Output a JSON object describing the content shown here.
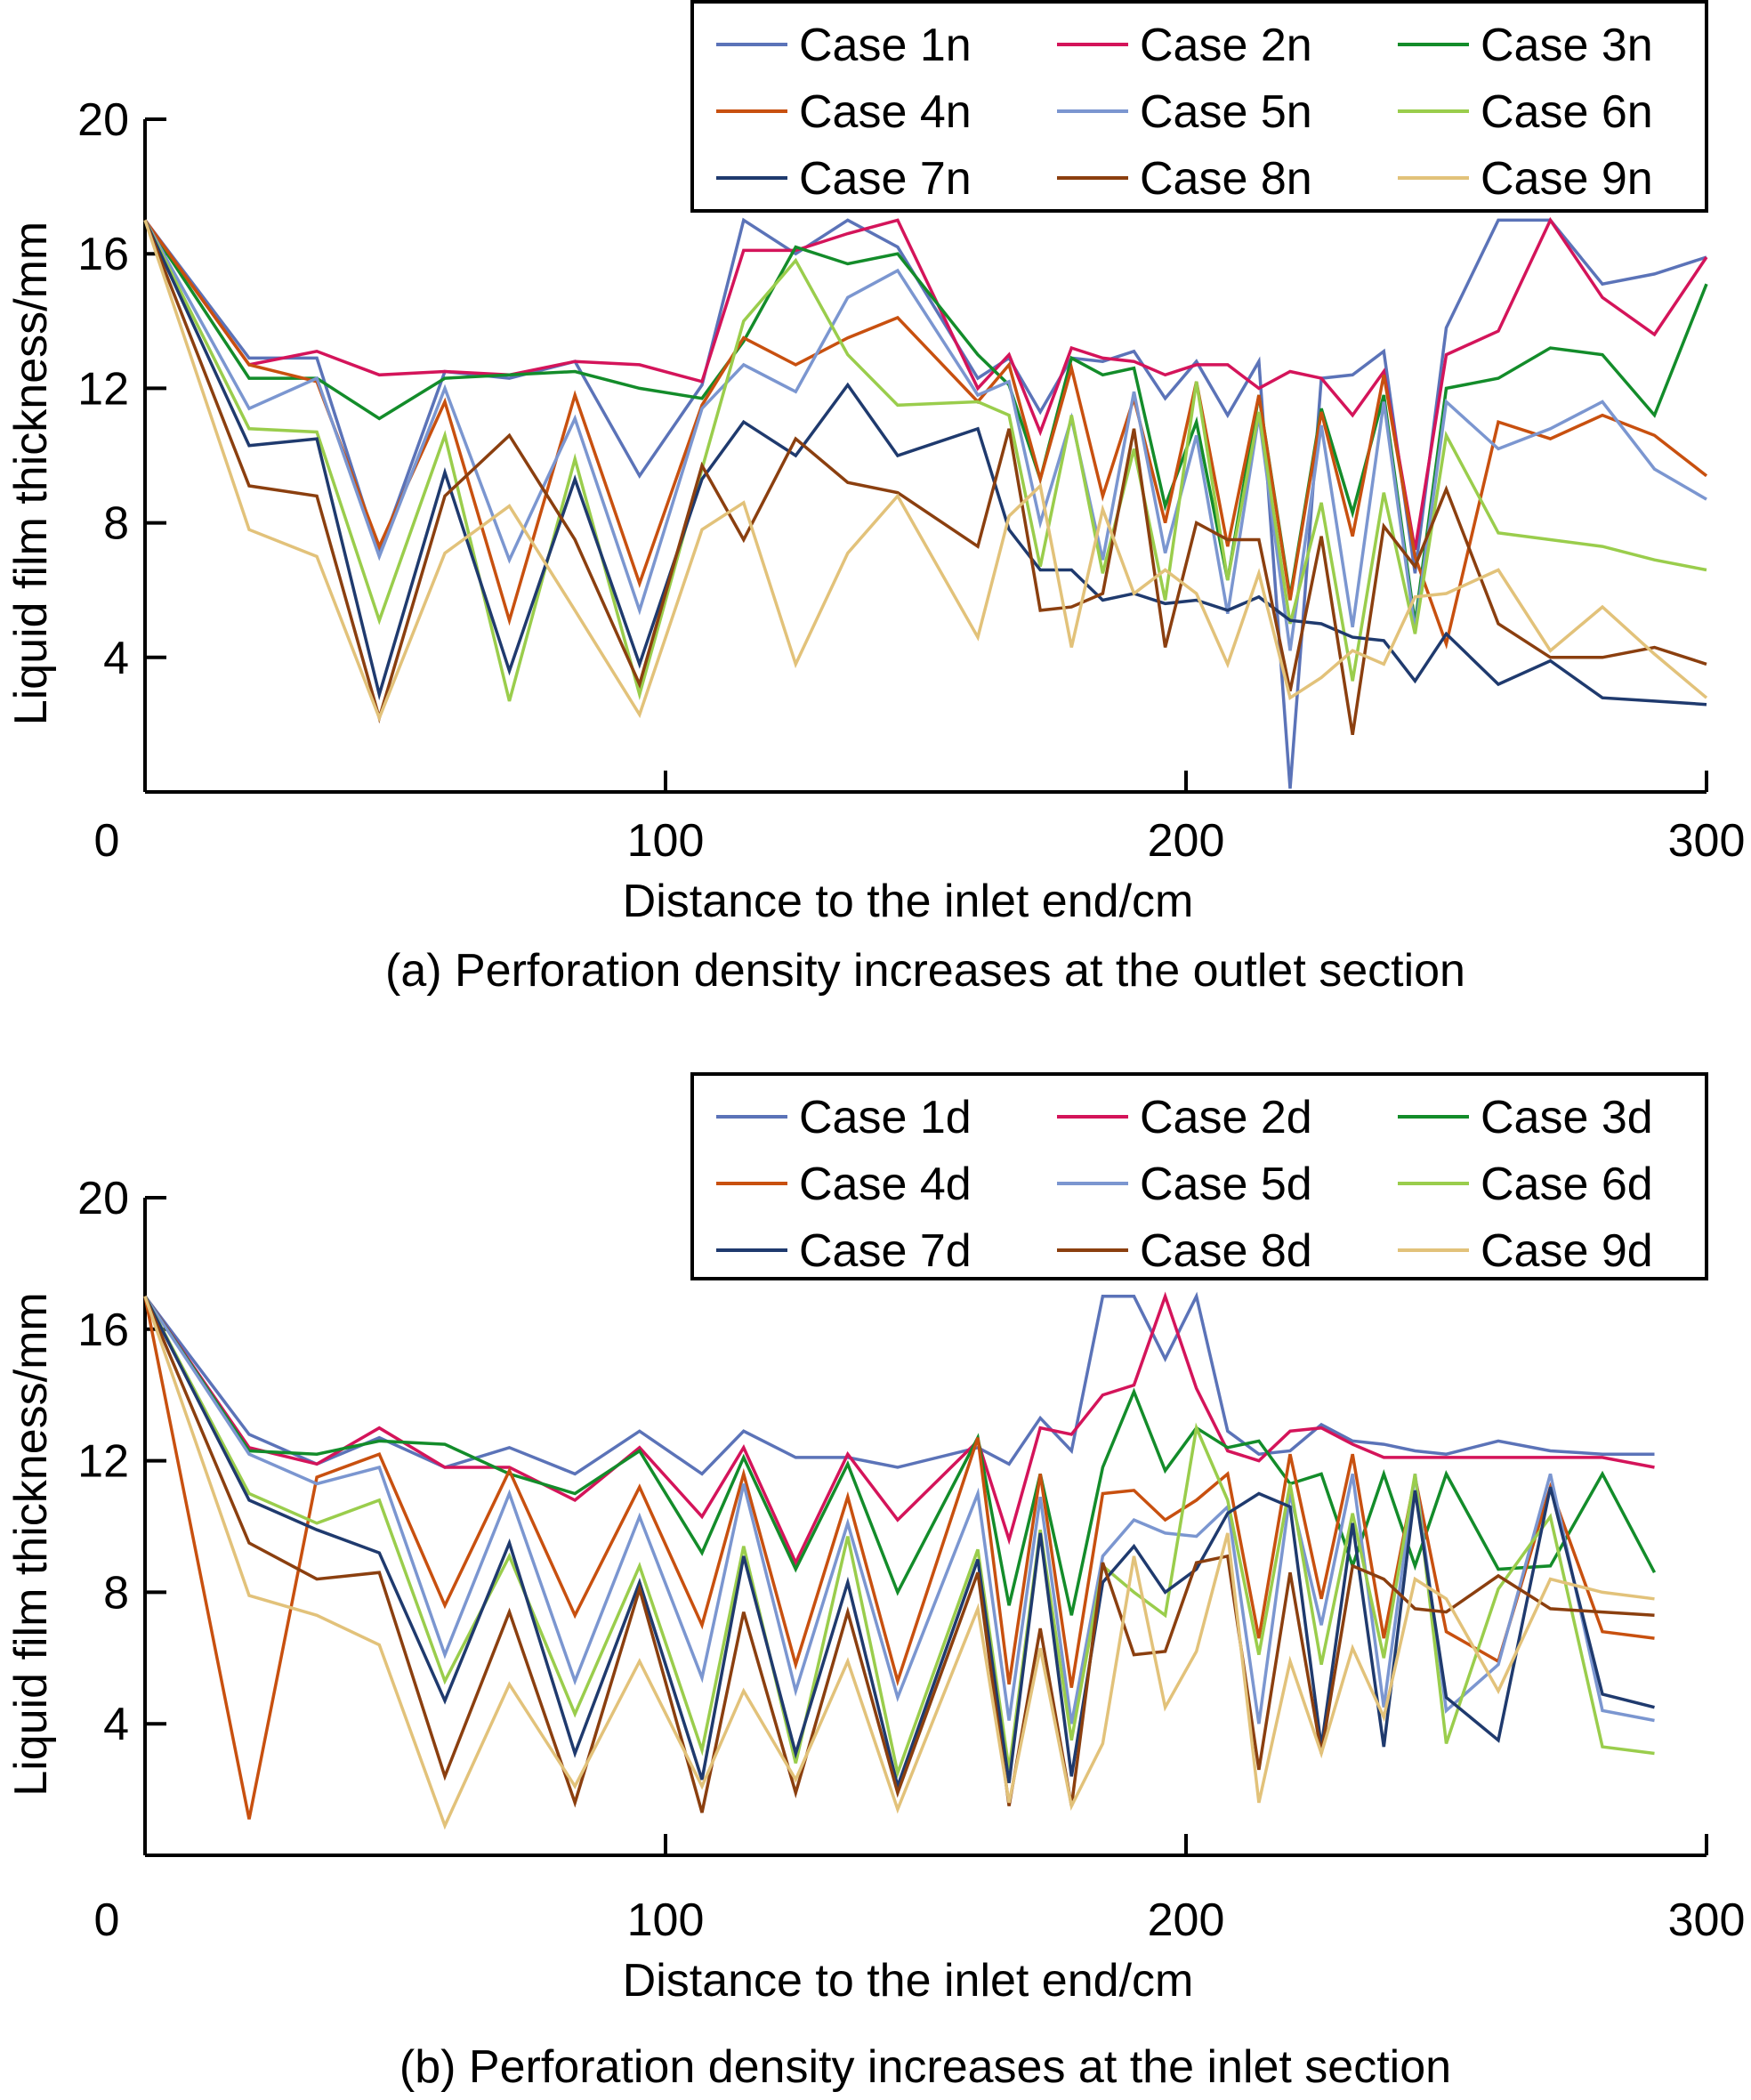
{
  "chart_data": [
    {
      "type": "line",
      "title": "",
      "caption": "(a) Perforation density increases at the outlet section",
      "xlabel": "Distance to the inlet end/cm",
      "ylabel": "Liquid film thickness/mm",
      "xlim": [
        0,
        300
      ],
      "ylim": [
        0,
        20
      ],
      "xticks": [
        "0",
        "100",
        "200",
        "300"
      ],
      "yticks": [
        "4",
        "8",
        "12",
        "16",
        "20"
      ],
      "grid": false,
      "legend_position": "top-right",
      "x": [
        0,
        20,
        33,
        45,
        57.6,
        70,
        82.6,
        95,
        107,
        115,
        125,
        135,
        144.6,
        160,
        166,
        172,
        178,
        184,
        190,
        196,
        202,
        208,
        214,
        220,
        226,
        232,
        238,
        244,
        250,
        260,
        270,
        280,
        290,
        300
      ],
      "series": [
        {
          "name": "Case 1n",
          "color": "#5b73b8",
          "values": [
            17,
            12.9,
            12.9,
            7.1,
            12.5,
            12.3,
            12.8,
            9.4,
            12.1,
            17,
            16,
            17,
            16.2,
            12.3,
            12.9,
            11.3,
            12.9,
            12.8,
            13.1,
            11.7,
            12.8,
            11.2,
            12.8,
            0.1,
            12.3,
            12.4,
            13.1,
            6.5,
            13.8,
            17,
            17,
            15.1,
            15.4,
            15.9
          ]
        },
        {
          "name": "Case 2n",
          "color": "#d4145a",
          "values": [
            17,
            12.7,
            13.1,
            12.4,
            12.5,
            12.4,
            12.8,
            12.7,
            12.2,
            16.1,
            16.1,
            16.6,
            17,
            12,
            13,
            10.7,
            13.2,
            12.9,
            12.8,
            12.4,
            12.7,
            12.7,
            12,
            12.5,
            12.3,
            11.2,
            12.5,
            7.2,
            13,
            13.7,
            17,
            14.7,
            13.6,
            15.9
          ]
        },
        {
          "name": "Case 3n",
          "color": "#138c2a",
          "values": [
            17,
            12.3,
            12.3,
            11.1,
            12.3,
            12.4,
            12.5,
            12,
            11.7,
            13.4,
            16.2,
            15.7,
            16,
            13,
            12.1,
            9.3,
            12.9,
            12.4,
            12.6,
            8.5,
            11,
            6.3,
            11.8,
            5.8,
            11.4,
            8.3,
            11.8,
            5,
            12,
            12.3,
            13.2,
            13,
            11.2,
            15.1
          ]
        },
        {
          "name": "Case 4n",
          "color": "#c8500f",
          "values": [
            17,
            12.7,
            12.2,
            7.3,
            11.6,
            5.1,
            11.8,
            6.2,
            11.5,
            13.5,
            12.7,
            13.5,
            14.1,
            11.6,
            12.7,
            9.3,
            12.6,
            8.8,
            11.7,
            8,
            12.2,
            7.3,
            11.8,
            5.7,
            11.3,
            7.6,
            12.4,
            7,
            4.4,
            11,
            10.5,
            11.2,
            10.6,
            9.4
          ]
        },
        {
          "name": "Case 5n",
          "color": "#7b96d0",
          "values": [
            17,
            11.4,
            12.3,
            7,
            12,
            6.9,
            11.1,
            5.4,
            11.4,
            12.7,
            11.9,
            14.7,
            15.5,
            11.8,
            12.2,
            8,
            11.1,
            6.9,
            11.9,
            7.1,
            10.6,
            5.3,
            11.2,
            4.2,
            10.9,
            4.9,
            11.6,
            4.8,
            11.6,
            10.2,
            10.8,
            11.6,
            9.6,
            8.7
          ]
        },
        {
          "name": "Case 6n",
          "color": "#9acd4c",
          "values": [
            17,
            10.8,
            10.7,
            5.1,
            10.6,
            2.7,
            9.9,
            2.9,
            9.6,
            14,
            15.8,
            13,
            11.5,
            11.6,
            11.2,
            6.7,
            11.2,
            6.5,
            10.2,
            5.7,
            12.2,
            6.3,
            11.3,
            5,
            8.6,
            3.3,
            8.9,
            4.7,
            10.6,
            7.7,
            7.5,
            7.3,
            6.9,
            6.6
          ]
        },
        {
          "name": "Case 7n",
          "color": "#1f3a6e",
          "values": [
            17,
            10.3,
            10.5,
            2.9,
            9.5,
            3.6,
            9.3,
            3.8,
            9.3,
            11,
            10,
            12.1,
            10,
            10.8,
            7.8,
            6.6,
            6.6,
            5.7,
            5.9,
            5.6,
            5.7,
            5.4,
            5.8,
            5.1,
            5,
            4.6,
            4.5,
            3.3,
            4.7,
            3.2,
            3.9,
            2.8,
            2.7,
            2.6
          ]
        },
        {
          "name": "Case 8n",
          "color": "#8b3f0f",
          "values": [
            17,
            9.1,
            8.8,
            2.2,
            8.8,
            10.6,
            7.5,
            3.2,
            9.7,
            7.5,
            10.5,
            9.2,
            8.9,
            7.3,
            10.8,
            5.4,
            5.5,
            5.9,
            10.8,
            4.3,
            8,
            7.5,
            7.5,
            3,
            7.6,
            1.7,
            7.9,
            6.7,
            9,
            5,
            4,
            4,
            4.3,
            3.8
          ]
        },
        {
          "name": "Case 9n",
          "color": "#e2c27a",
          "values": [
            17,
            7.8,
            7,
            2.2,
            7.1,
            8.5,
            5.4,
            2.3,
            7.8,
            8.6,
            3.8,
            7.1,
            8.8,
            4.6,
            8.2,
            9.1,
            4.3,
            8.4,
            5.9,
            6.6,
            5.9,
            3.8,
            6.5,
            2.8,
            3.4,
            4.2,
            3.8,
            5.8,
            5.9,
            6.6,
            4.2,
            5.5,
            4.1,
            2.8
          ]
        }
      ]
    },
    {
      "type": "line",
      "title": "",
      "caption": "(b) Perforation density increases at the inlet section",
      "xlabel": "Distance to the inlet end/cm",
      "ylabel": "Liquid film thickness/mm",
      "xlim": [
        0,
        300
      ],
      "ylim": [
        0,
        20
      ],
      "xticks": [
        "0",
        "100",
        "200",
        "300"
      ],
      "yticks": [
        "4",
        "8",
        "12",
        "16",
        "20"
      ],
      "grid": false,
      "legend_position": "top-right",
      "x": [
        0,
        20,
        33,
        45,
        57.6,
        70,
        82.6,
        95,
        107,
        115,
        125,
        135,
        144.6,
        160,
        166,
        172,
        178,
        184,
        190,
        196,
        202,
        208,
        214,
        220,
        226,
        232,
        238,
        244,
        250,
        260,
        270,
        280,
        290
      ],
      "series": [
        {
          "name": "Case 1d",
          "color": "#5b73b8",
          "values": [
            17,
            12.8,
            11.9,
            12.7,
            11.8,
            12.4,
            11.6,
            12.9,
            11.6,
            12.9,
            12.1,
            12.1,
            11.8,
            12.4,
            11.9,
            13.3,
            12.3,
            17,
            17,
            15.1,
            17,
            12.9,
            12.2,
            12.3,
            13.1,
            12.6,
            12.5,
            12.3,
            12.2,
            12.6,
            12.3,
            12.2,
            12.2
          ]
        },
        {
          "name": "Case 2d",
          "color": "#d4145a",
          "values": [
            17,
            12.4,
            11.9,
            13,
            11.8,
            11.8,
            10.8,
            12.4,
            10.3,
            12.4,
            8.9,
            12.2,
            10.2,
            12.6,
            9.6,
            13,
            12.8,
            14,
            14.3,
            17,
            14.2,
            12.3,
            12,
            12.9,
            13,
            12.5,
            12.1,
            12.1,
            12.1,
            12.1,
            12.1,
            12.1,
            11.8
          ]
        },
        {
          "name": "Case 3d",
          "color": "#138c2a",
          "values": [
            17,
            12.3,
            12.2,
            12.6,
            12.5,
            11.6,
            11,
            12.3,
            9.2,
            12.1,
            8.7,
            11.9,
            8,
            12.7,
            7.6,
            11.6,
            7.3,
            11.8,
            14.1,
            11.7,
            13,
            12.4,
            12.6,
            11.3,
            11.6,
            8.8,
            11.6,
            8.8,
            11.6,
            8.7,
            8.8,
            11.6,
            8.6
          ]
        },
        {
          "name": "Case 4d",
          "color": "#c8500f",
          "values": [
            17,
            1.1,
            11.5,
            12.2,
            7.6,
            11.7,
            7.3,
            11.2,
            7,
            11.6,
            5.8,
            10.9,
            5.3,
            12.7,
            5.2,
            11.6,
            5.1,
            11,
            11.1,
            10.2,
            10.8,
            11.6,
            6.6,
            12.2,
            7.8,
            12.2,
            6.6,
            11.5,
            6.8,
            5.9,
            11.2,
            6.8,
            6.6
          ]
        },
        {
          "name": "Case 5d",
          "color": "#7b96d0",
          "values": [
            17,
            12.2,
            11.3,
            11.8,
            6.1,
            11,
            5.3,
            10.3,
            5.4,
            11.3,
            5,
            10.1,
            4.8,
            11,
            4.1,
            10.9,
            4,
            9.1,
            10.2,
            9.8,
            9.7,
            10.6,
            4,
            11,
            7,
            11.6,
            4.5,
            11.6,
            4.4,
            5.8,
            11.6,
            4.4,
            4.1
          ]
        },
        {
          "name": "Case 6d",
          "color": "#9acd4c",
          "values": [
            17,
            11,
            10.1,
            10.8,
            5.3,
            9.1,
            4.3,
            8.8,
            3.2,
            9.4,
            2.8,
            9.7,
            2.5,
            9.3,
            2.6,
            9.9,
            3.5,
            8.8,
            8,
            7.3,
            13,
            10.8,
            6.1,
            11.3,
            5.8,
            10.4,
            6,
            11.6,
            3.4,
            8.1,
            10.3,
            3.3,
            3.1
          ]
        },
        {
          "name": "Case 7d",
          "color": "#1f3a6e",
          "values": [
            17,
            10.8,
            9.9,
            9.2,
            4.7,
            9.5,
            3.1,
            8.3,
            2.3,
            9.1,
            3.1,
            8.3,
            2.1,
            9,
            2.2,
            9.8,
            2.4,
            8.3,
            9.4,
            8,
            8.7,
            10.4,
            11,
            10.6,
            3.3,
            10.1,
            3.3,
            11.1,
            4.8,
            3.5,
            11.2,
            4.9,
            4.5
          ]
        },
        {
          "name": "Case 8d",
          "color": "#8b3f0f",
          "values": [
            17,
            9.5,
            8.4,
            8.6,
            2.4,
            7.4,
            1.6,
            8.1,
            1.3,
            7.4,
            1.9,
            7.4,
            1.9,
            8.6,
            1.5,
            6.9,
            1.5,
            8.9,
            6.1,
            6.2,
            8.9,
            9.1,
            2.6,
            8.6,
            3.1,
            8.8,
            8.4,
            7.5,
            7.4,
            8.5,
            7.5,
            7.4,
            7.3
          ]
        },
        {
          "name": "Case 9d",
          "color": "#e2c27a",
          "values": [
            17,
            7.9,
            7.3,
            6.4,
            0.9,
            5.2,
            2.1,
            5.9,
            2.1,
            5,
            2.3,
            5.9,
            1.4,
            7.5,
            1.6,
            6.3,
            1.5,
            3.4,
            9.1,
            4.5,
            6.2,
            9.8,
            1.6,
            5.9,
            3.1,
            6.3,
            4.2,
            8.4,
            7.8,
            5,
            8.4,
            8,
            7.8
          ]
        }
      ]
    }
  ]
}
